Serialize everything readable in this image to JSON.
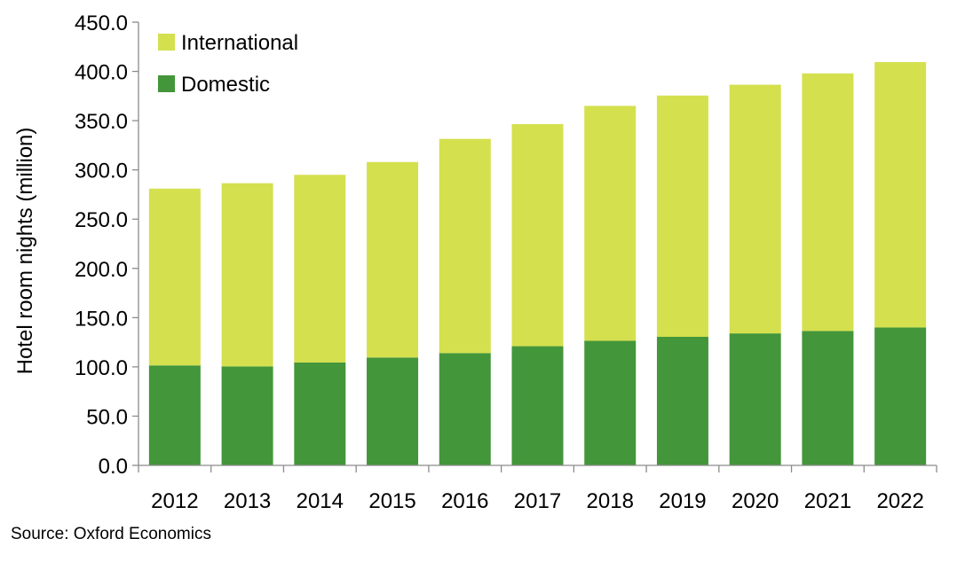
{
  "chart_data": {
    "type": "bar",
    "stacked": true,
    "categories": [
      "2012",
      "2013",
      "2014",
      "2015",
      "2016",
      "2017",
      "2018",
      "2019",
      "2020",
      "2021",
      "2022"
    ],
    "series": [
      {
        "name": "Domestic",
        "color": "#43963a",
        "values": [
          101.5,
          100.5,
          104.5,
          109.5,
          114.0,
          121.0,
          126.5,
          130.5,
          134.0,
          136.5,
          140.0
        ]
      },
      {
        "name": "International",
        "color": "#d4e04e",
        "values": [
          179.5,
          186.0,
          190.5,
          198.5,
          217.5,
          225.5,
          238.5,
          245.0,
          252.5,
          261.5,
          269.5
        ]
      }
    ],
    "ylabel": "Hotel room nights (million)",
    "xlabel": "",
    "ylim": [
      0,
      450
    ],
    "yticks": [
      "0.0",
      "50.0",
      "100.0",
      "150.0",
      "200.0",
      "250.0",
      "300.0",
      "350.0",
      "400.0",
      "450.0"
    ],
    "legend": {
      "position": "top-left",
      "entries": [
        "International",
        "Domestic"
      ]
    },
    "grid": false
  },
  "source_note": "Source: Oxford Economics"
}
